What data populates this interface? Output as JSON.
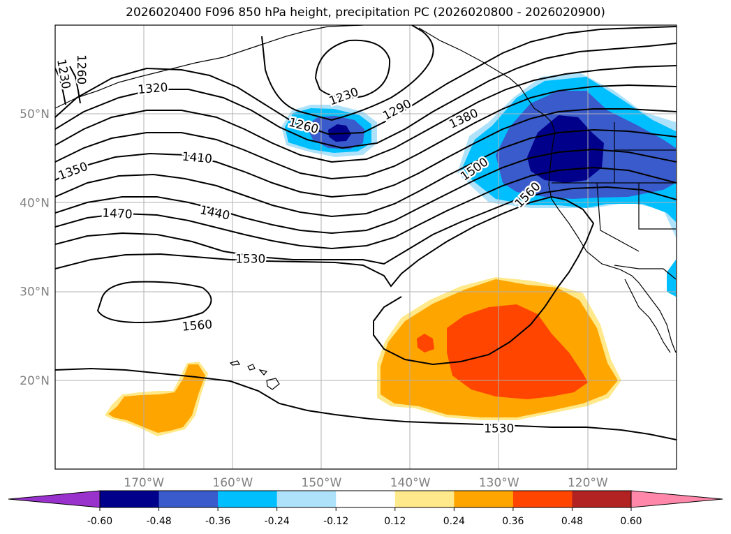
{
  "title": "2026020400 F096 850 hPa height, precipitation PC (2026020800 - 2026020900)",
  "map": {
    "lon_range": [
      -180,
      -110
    ],
    "lat_range": [
      10,
      60
    ],
    "lon_ticks": [
      {
        "lon": -170,
        "label": "170°W"
      },
      {
        "lon": -160,
        "label": "160°W"
      },
      {
        "lon": -150,
        "label": "150°W"
      },
      {
        "lon": -140,
        "label": "140°W"
      },
      {
        "lon": -130,
        "label": "130°W"
      },
      {
        "lon": -120,
        "label": "120°W"
      }
    ],
    "lat_ticks": [
      {
        "lat": 20,
        "label": "20°N"
      },
      {
        "lat": 30,
        "label": "30°N"
      },
      {
        "lat": 40,
        "label": "40°N"
      },
      {
        "lat": 50,
        "label": "50°N"
      }
    ],
    "grid": true
  },
  "contour_labels": [
    {
      "text": "1260",
      "lon": -177.0,
      "lat": 55.0,
      "rot": 90
    },
    {
      "text": "1230",
      "lon": -179.0,
      "lat": 54.5,
      "rot": 80
    },
    {
      "text": "1320",
      "lon": -169.0,
      "lat": 52.9,
      "rot": -5
    },
    {
      "text": "1230",
      "lon": -147.5,
      "lat": 52.0,
      "rot": -20
    },
    {
      "text": "1290",
      "lon": -141.5,
      "lat": 50.5,
      "rot": -28
    },
    {
      "text": "1260",
      "lon": -152.0,
      "lat": 48.7,
      "rot": 15
    },
    {
      "text": "1380",
      "lon": -134.0,
      "lat": 49.5,
      "rot": -25
    },
    {
      "text": "1350",
      "lon": -178.0,
      "lat": 43.6,
      "rot": -20
    },
    {
      "text": "1410",
      "lon": -164.0,
      "lat": 45.1,
      "rot": 5
    },
    {
      "text": "1500",
      "lon": -132.8,
      "lat": 43.8,
      "rot": -35
    },
    {
      "text": "1560",
      "lon": -126.8,
      "lat": 40.9,
      "rot": -45
    },
    {
      "text": "1470",
      "lon": -173.0,
      "lat": 38.8,
      "rot": 3
    },
    {
      "text": "1440",
      "lon": -162.0,
      "lat": 38.9,
      "rot": 12
    },
    {
      "text": "1530",
      "lon": -158.0,
      "lat": 33.7,
      "rot": 0
    },
    {
      "text": "1560",
      "lon": -164.0,
      "lat": 26.2,
      "rot": -5
    },
    {
      "text": "1530",
      "lon": -130.0,
      "lat": 14.6,
      "rot": 0
    }
  ],
  "precip_pc": {
    "levels": [
      "-0.60",
      "-0.48",
      "-0.36",
      "-0.24",
      "-0.12",
      "0.12",
      "0.24",
      "0.36",
      "0.48",
      "0.60"
    ],
    "colors": [
      "#9932cc",
      "#00008b",
      "#3a5bcb",
      "#00bfff",
      "#aee2fa",
      "#ffffff",
      "#ffe98a",
      "#ffa500",
      "#ff4500",
      "#b22222",
      "#ff88aa"
    ]
  }
}
